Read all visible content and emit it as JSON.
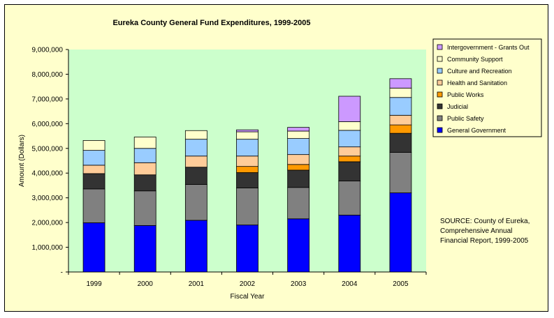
{
  "chart_data": {
    "type": "bar",
    "stacked": true,
    "title": "Eureka County General Fund Expenditures, 1999-2005",
    "xlabel": "Fiscal Year",
    "ylabel": "Amount (Dollars)",
    "ylim": [
      0,
      9000000
    ],
    "yticks": [
      0,
      1000000,
      2000000,
      3000000,
      4000000,
      5000000,
      6000000,
      7000000,
      8000000,
      9000000
    ],
    "ytick_labels": [
      "-",
      "1,000,000",
      "2,000,000",
      "3,000,000",
      "4,000,000",
      "5,000,000",
      "6,000,000",
      "7,000,000",
      "8,000,000",
      "9,000,000"
    ],
    "categories": [
      "1999",
      "2000",
      "2001",
      "2002",
      "2003",
      "2004",
      "2005"
    ],
    "legend_position": "top-right",
    "grid": false,
    "series": [
      {
        "name": "General Government",
        "color": "#0000ff",
        "values": [
          1990000,
          1880000,
          2090000,
          1900000,
          2150000,
          2300000,
          3200000
        ]
      },
      {
        "name": "Public Safety",
        "color": "#808080",
        "values": [
          1370000,
          1400000,
          1450000,
          1500000,
          1270000,
          1380000,
          1640000
        ]
      },
      {
        "name": "Judicial",
        "color": "#333333",
        "values": [
          620000,
          650000,
          700000,
          620000,
          700000,
          780000,
          770000
        ]
      },
      {
        "name": "Public Works",
        "color": "#ff9900",
        "values": [
          0,
          0,
          0,
          250000,
          230000,
          230000,
          340000
        ]
      },
      {
        "name": "Health and Sanitation",
        "color": "#ffcc99",
        "values": [
          340000,
          490000,
          450000,
          420000,
          400000,
          370000,
          390000
        ]
      },
      {
        "name": "Culture and Recreation",
        "color": "#99ccff",
        "values": [
          600000,
          580000,
          680000,
          680000,
          650000,
          670000,
          720000
        ]
      },
      {
        "name": "Community Support",
        "color": "#ffffcc",
        "values": [
          400000,
          460000,
          350000,
          300000,
          300000,
          350000,
          380000
        ]
      },
      {
        "name": "Intergovernment - Grants Out",
        "color": "#cc99ff",
        "values": [
          0,
          0,
          0,
          80000,
          150000,
          1030000,
          380000
        ]
      }
    ],
    "colors": {
      "chart_area": "#ffffcc",
      "plot_area": "#ccffcc",
      "axis": "#000000"
    }
  },
  "source_note": {
    "lines": [
      "SOURCE: County of Eureka,",
      "Comprehensive Annual",
      "Financial Report, 1999-2005"
    ]
  }
}
